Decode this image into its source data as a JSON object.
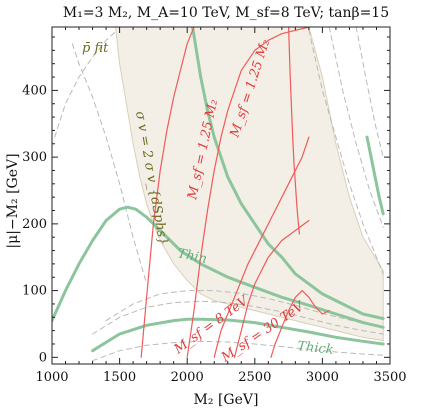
{
  "chart_data": {
    "type": "line",
    "title": "M₁=3 M₂, M_A=10 TeV, M_sf=8 TeV; tanβ=15",
    "xlabel": "M₂ [GeV]",
    "ylabel": "|μ|−M₂ [GeV]",
    "xlim": [
      1000,
      3500
    ],
    "ylim": [
      -10,
      495
    ],
    "x_ticks": [
      1000,
      1500,
      2000,
      2500,
      3000,
      3500
    ],
    "y_ticks": [
      0,
      100,
      200,
      300,
      400
    ],
    "grid": false,
    "colors": {
      "green": "#8cc59c",
      "red": "#f05a5a",
      "band": "#f3efe6",
      "band_edge": "#d8d0b8",
      "dashed": "#b9b9b9",
      "olive": "#6b6a1e"
    },
    "annotations": {
      "pbar_fit": "p̄ fit",
      "sigma_v": "σ v = 2 σ v_{dSphs}",
      "msf_125_upper": "M_sf = 1.25 M₂",
      "msf_125_lower": "M_sf = 1.25 M₂",
      "thin": "Thin",
      "thick": "Thick",
      "msf_8tev": "M_sf = 8 TeV",
      "msf_30tev": "M_sf = 30 TeV"
    },
    "series": [
      {
        "color": "green",
        "style": "solid",
        "x": [
          1000,
          1100,
          1200,
          1300,
          1400,
          1500,
          1560,
          1620,
          1700,
          1800,
          1950,
          2100,
          2300,
          2500,
          2700,
          2900,
          3100,
          3300,
          3450
        ],
        "y": [
          55,
          100,
          140,
          175,
          205,
          222,
          225,
          222,
          210,
          190,
          160,
          140,
          120,
          105,
          90,
          78,
          65,
          52,
          45
        ]
      },
      {
        "color": "green",
        "style": "solid",
        "x": [
          1300,
          1500,
          1700,
          1900,
          2000,
          2100,
          2300,
          2500,
          2700,
          2900,
          3100,
          3300,
          3450
        ],
        "y": [
          10,
          35,
          48,
          55,
          57,
          57,
          56,
          52,
          45,
          38,
          30,
          24,
          20
        ]
      },
      {
        "color": "green",
        "style": "solid",
        "x": [
          3330,
          3360,
          3390,
          3420,
          3450
        ],
        "y": [
          330,
          300,
          270,
          240,
          215
        ]
      },
      {
        "color": "green",
        "style": "solid",
        "x": [
          2040,
          2100,
          2150,
          2200,
          2250,
          2300,
          2400,
          2500,
          2600,
          2700,
          2800,
          2900,
          3000,
          3100,
          3200,
          3300,
          3450
        ],
        "y": [
          495,
          420,
          370,
          330,
          300,
          270,
          230,
          200,
          170,
          150,
          125,
          110,
          95,
          85,
          75,
          65,
          58
        ]
      },
      {
        "color": "red",
        "style": "solid",
        "x": [
          1660,
          1700,
          1750,
          1800,
          1850,
          1900,
          1950,
          2000,
          2050
        ],
        "y": [
          0,
          90,
          200,
          280,
          340,
          390,
          430,
          470,
          495
        ]
      },
      {
        "color": "red",
        "style": "solid",
        "x": [
          2000,
          2050,
          2100,
          2150,
          2200,
          2250,
          2300,
          2350,
          2400,
          2500,
          2600,
          2700,
          2800,
          2900
        ],
        "y": [
          0,
          70,
          150,
          220,
          280,
          330,
          370,
          400,
          430,
          460,
          475,
          485,
          490,
          495
        ]
      },
      {
        "color": "red",
        "style": "solid",
        "x": [
          2200,
          2250,
          2350,
          2450,
          2550,
          2650,
          2750,
          2850,
          2900
        ],
        "y": [
          0,
          40,
          90,
          140,
          180,
          220,
          260,
          300,
          330
        ]
      },
      {
        "color": "red",
        "style": "solid",
        "x": [
          2350,
          2400,
          2450,
          2500,
          2600,
          2700,
          2800,
          2900
        ],
        "y": [
          0,
          40,
          80,
          110,
          150,
          175,
          190,
          205
        ]
      },
      {
        "color": "red",
        "style": "solid",
        "x": [
          2620,
          2650,
          2700,
          2750,
          2800,
          2850,
          2900,
          2950,
          3000,
          3050
        ],
        "y": [
          0,
          20,
          45,
          70,
          90,
          100,
          90,
          75,
          65,
          70
        ]
      },
      {
        "color": "red",
        "style": "solid",
        "x": [
          2750,
          2760,
          2770,
          2780,
          2790,
          2800,
          2810,
          2820,
          2830
        ],
        "y": [
          495,
          430,
          380,
          330,
          290,
          260,
          230,
          205,
          185
        ]
      },
      {
        "color": "dashed",
        "style": "dashed",
        "x": [
          1020,
          1100,
          1200,
          1300,
          1400,
          1480
        ],
        "y": [
          330,
          380,
          420,
          450,
          475,
          490
        ]
      },
      {
        "color": "dashed",
        "style": "dashed",
        "x": [
          1150,
          1200,
          1300,
          1400,
          1500,
          1600,
          1700
        ],
        "y": [
          470,
          440,
          390,
          330,
          260,
          180,
          110
        ]
      },
      {
        "color": "dashed",
        "style": "dashed",
        "x": [
          2900,
          3000,
          3100,
          3200,
          3300,
          3400,
          3450
        ],
        "y": [
          490,
          400,
          330,
          260,
          200,
          150,
          125
        ]
      },
      {
        "color": "dashed",
        "style": "dashed",
        "x": [
          3050,
          3150,
          3250,
          3350,
          3450
        ],
        "y": [
          495,
          400,
          320,
          250,
          195
        ]
      },
      {
        "color": "dashed",
        "style": "dashed",
        "x": [
          3250,
          3320,
          3390,
          3450
        ],
        "y": [
          495,
          420,
          350,
          300
        ]
      },
      {
        "color": "dashed",
        "style": "dashed",
        "x": [
          1300,
          1500,
          1700,
          1900,
          2100,
          2300,
          2500,
          2700,
          2900,
          3100,
          3300,
          3450
        ],
        "y": [
          35,
          60,
          75,
          82,
          84,
          82,
          76,
          68,
          58,
          48,
          40,
          35
        ]
      },
      {
        "color": "dashed",
        "style": "dashed",
        "x": [
          1400,
          1600,
          1800,
          2000,
          2200,
          2400,
          2600,
          2800,
          3000,
          3200,
          3450
        ],
        "y": [
          55,
          80,
          95,
          100,
          100,
          96,
          88,
          78,
          66,
          56,
          45
        ]
      },
      {
        "color": "dashed",
        "style": "dashed",
        "x": [
          1300,
          1500,
          1700,
          1900,
          2100,
          2300,
          2500,
          2700,
          2900,
          3100,
          3300,
          3450
        ],
        "y": [
          -5,
          10,
          18,
          22,
          24,
          23,
          20,
          16,
          12,
          8,
          5,
          3
        ]
      }
    ],
    "bands": [
      {
        "name": "p̄ fit",
        "x_left": [
          1470,
          1500,
          1550,
          1600,
          1650,
          1700,
          1750,
          1800,
          1900,
          2000,
          2100,
          2200,
          2300,
          2400,
          2500,
          2600,
          2700,
          2800,
          2900,
          3000,
          3100,
          3200,
          3300,
          3450
        ],
        "y_upper": [
          495,
          495,
          495,
          495,
          495,
          495,
          495,
          495,
          495,
          495,
          495,
          495,
          495,
          495,
          495,
          495,
          495,
          495,
          495,
          420,
          320,
          240,
          180,
          130
        ],
        "y_lower": [
          495,
          440,
          380,
          320,
          270,
          230,
          200,
          175,
          140,
          115,
          95,
          85,
          80,
          75,
          70,
          65,
          60,
          55,
          50,
          45,
          40,
          35,
          30,
          25
        ]
      }
    ]
  }
}
